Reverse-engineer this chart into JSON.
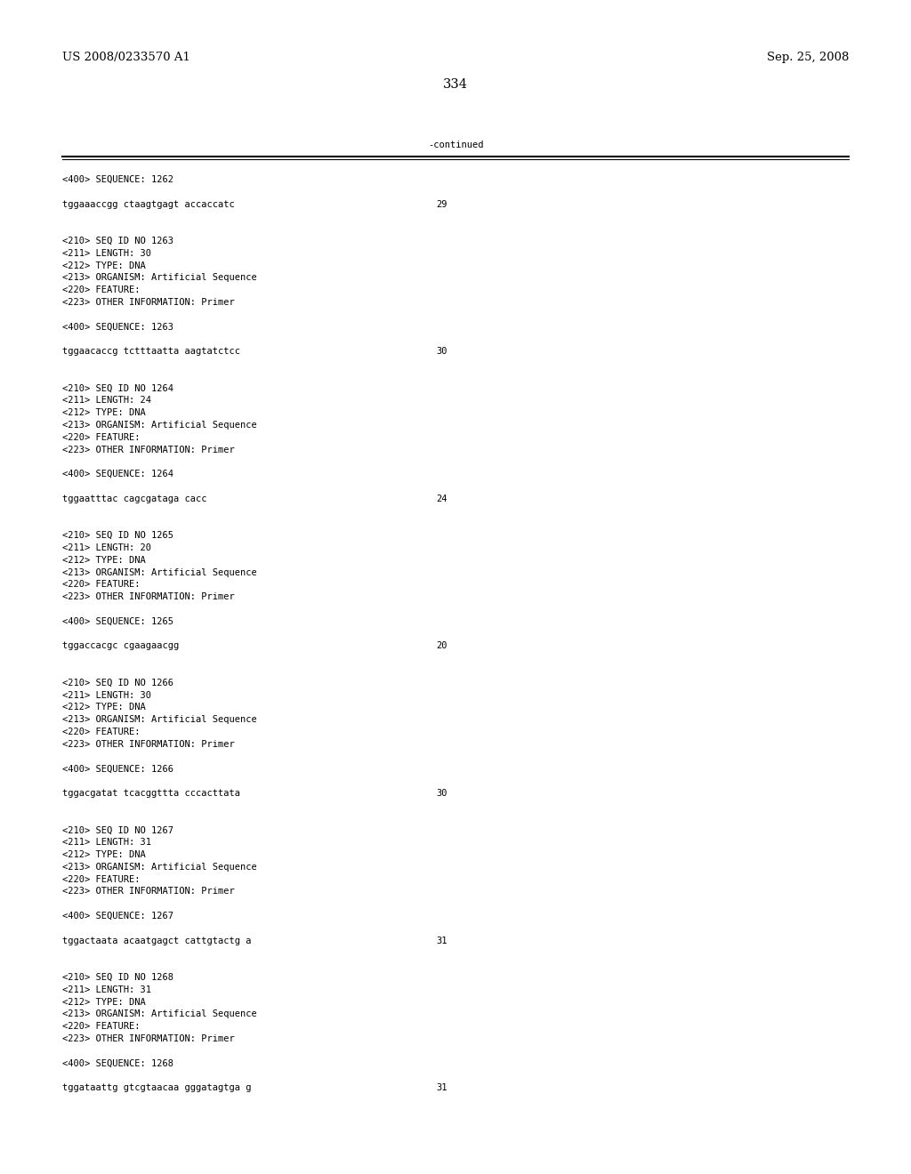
{
  "background_color": "#ffffff",
  "top_left_text": "US 2008/0233570 A1",
  "top_right_text": "Sep. 25, 2008",
  "page_number": "334",
  "continued_label": "-continued",
  "font_size_header": 9.5,
  "font_size_page": 10.5,
  "font_size_body": 7.5,
  "content_lines": [
    {
      "text": "<400> SEQUENCE: 1262",
      "number": null
    },
    {
      "text": "",
      "number": null
    },
    {
      "text": "tggaaaccgg ctaagtgagt accaccatc",
      "number": "29"
    },
    {
      "text": "",
      "number": null
    },
    {
      "text": "",
      "number": null
    },
    {
      "text": "<210> SEQ ID NO 1263",
      "number": null
    },
    {
      "text": "<211> LENGTH: 30",
      "number": null
    },
    {
      "text": "<212> TYPE: DNA",
      "number": null
    },
    {
      "text": "<213> ORGANISM: Artificial Sequence",
      "number": null
    },
    {
      "text": "<220> FEATURE:",
      "number": null
    },
    {
      "text": "<223> OTHER INFORMATION: Primer",
      "number": null
    },
    {
      "text": "",
      "number": null
    },
    {
      "text": "<400> SEQUENCE: 1263",
      "number": null
    },
    {
      "text": "",
      "number": null
    },
    {
      "text": "tggaacaccg tctttaatta aagtatctcc",
      "number": "30"
    },
    {
      "text": "",
      "number": null
    },
    {
      "text": "",
      "number": null
    },
    {
      "text": "<210> SEQ ID NO 1264",
      "number": null
    },
    {
      "text": "<211> LENGTH: 24",
      "number": null
    },
    {
      "text": "<212> TYPE: DNA",
      "number": null
    },
    {
      "text": "<213> ORGANISM: Artificial Sequence",
      "number": null
    },
    {
      "text": "<220> FEATURE:",
      "number": null
    },
    {
      "text": "<223> OTHER INFORMATION: Primer",
      "number": null
    },
    {
      "text": "",
      "number": null
    },
    {
      "text": "<400> SEQUENCE: 1264",
      "number": null
    },
    {
      "text": "",
      "number": null
    },
    {
      "text": "tggaatttac cagcgataga cacc",
      "number": "24"
    },
    {
      "text": "",
      "number": null
    },
    {
      "text": "",
      "number": null
    },
    {
      "text": "<210> SEQ ID NO 1265",
      "number": null
    },
    {
      "text": "<211> LENGTH: 20",
      "number": null
    },
    {
      "text": "<212> TYPE: DNA",
      "number": null
    },
    {
      "text": "<213> ORGANISM: Artificial Sequence",
      "number": null
    },
    {
      "text": "<220> FEATURE:",
      "number": null
    },
    {
      "text": "<223> OTHER INFORMATION: Primer",
      "number": null
    },
    {
      "text": "",
      "number": null
    },
    {
      "text": "<400> SEQUENCE: 1265",
      "number": null
    },
    {
      "text": "",
      "number": null
    },
    {
      "text": "tggaccacgc cgaagaacgg",
      "number": "20"
    },
    {
      "text": "",
      "number": null
    },
    {
      "text": "",
      "number": null
    },
    {
      "text": "<210> SEQ ID NO 1266",
      "number": null
    },
    {
      "text": "<211> LENGTH: 30",
      "number": null
    },
    {
      "text": "<212> TYPE: DNA",
      "number": null
    },
    {
      "text": "<213> ORGANISM: Artificial Sequence",
      "number": null
    },
    {
      "text": "<220> FEATURE:",
      "number": null
    },
    {
      "text": "<223> OTHER INFORMATION: Primer",
      "number": null
    },
    {
      "text": "",
      "number": null
    },
    {
      "text": "<400> SEQUENCE: 1266",
      "number": null
    },
    {
      "text": "",
      "number": null
    },
    {
      "text": "tggacgatat tcacggttta cccacttata",
      "number": "30"
    },
    {
      "text": "",
      "number": null
    },
    {
      "text": "",
      "number": null
    },
    {
      "text": "<210> SEQ ID NO 1267",
      "number": null
    },
    {
      "text": "<211> LENGTH: 31",
      "number": null
    },
    {
      "text": "<212> TYPE: DNA",
      "number": null
    },
    {
      "text": "<213> ORGANISM: Artificial Sequence",
      "number": null
    },
    {
      "text": "<220> FEATURE:",
      "number": null
    },
    {
      "text": "<223> OTHER INFORMATION: Primer",
      "number": null
    },
    {
      "text": "",
      "number": null
    },
    {
      "text": "<400> SEQUENCE: 1267",
      "number": null
    },
    {
      "text": "",
      "number": null
    },
    {
      "text": "tggactaata acaatgagct cattgtactg a",
      "number": "31"
    },
    {
      "text": "",
      "number": null
    },
    {
      "text": "",
      "number": null
    },
    {
      "text": "<210> SEQ ID NO 1268",
      "number": null
    },
    {
      "text": "<211> LENGTH: 31",
      "number": null
    },
    {
      "text": "<212> TYPE: DNA",
      "number": null
    },
    {
      "text": "<213> ORGANISM: Artificial Sequence",
      "number": null
    },
    {
      "text": "<220> FEATURE:",
      "number": null
    },
    {
      "text": "<223> OTHER INFORMATION: Primer",
      "number": null
    },
    {
      "text": "",
      "number": null
    },
    {
      "text": "<400> SEQUENCE: 1268",
      "number": null
    },
    {
      "text": "",
      "number": null
    },
    {
      "text": "tggataattg gtcgtaacaa gggatagtga g",
      "number": "31"
    }
  ]
}
